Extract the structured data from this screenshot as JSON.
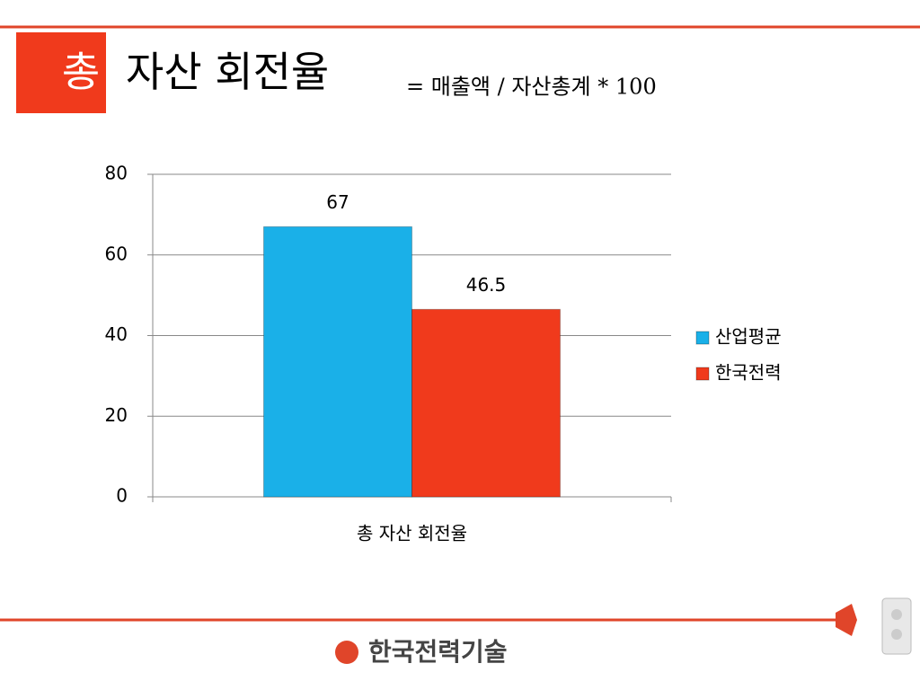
{
  "header": {
    "title_box": "총",
    "title": "자산 회전율",
    "formula": "= 매출액 / 자산총계 * 100"
  },
  "chart_data": {
    "type": "bar",
    "categories": [
      "총 자산 회전율"
    ],
    "series": [
      {
        "name": "산업평균",
        "color": "#1ab0e8",
        "values": [
          67
        ]
      },
      {
        "name": "한국전력",
        "color": "#f03a1c",
        "values": [
          46.5
        ]
      }
    ],
    "ylim": [
      0,
      80
    ],
    "yticks": [
      0,
      20,
      40,
      60,
      80
    ],
    "grid": true,
    "legend": "right"
  },
  "footer": {
    "logo": "한국전력기술"
  }
}
